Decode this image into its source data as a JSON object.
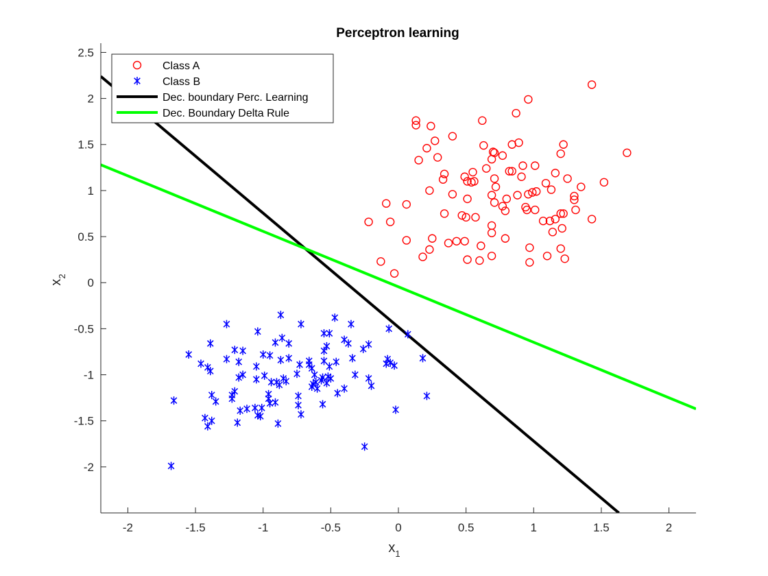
{
  "chart_data": {
    "type": "scatter",
    "title": "Perceptron learning",
    "xlabel": {
      "main": "x",
      "sub": "1"
    },
    "ylabel": {
      "main": "x",
      "sub": "2"
    },
    "xlim": [
      -2.2,
      2.2
    ],
    "ylim": [
      -2.5,
      2.6
    ],
    "xticks": [
      -2,
      -1.5,
      -1,
      -0.5,
      0,
      0.5,
      1,
      1.5,
      2
    ],
    "xtick_labels": [
      "-2",
      "-1.5",
      "-1",
      "-0.5",
      "0",
      "0.5",
      "1",
      "1.5",
      "2"
    ],
    "yticks": [
      -2,
      -1.5,
      -1,
      -0.5,
      0,
      0.5,
      1,
      1.5,
      2,
      2.5
    ],
    "ytick_labels": [
      "-2",
      "-1.5",
      "-1",
      "-0.5",
      "0",
      "0.5",
      "1",
      "1.5",
      "2",
      "2.5"
    ],
    "grid": false,
    "legend_position": "top-left",
    "colors": {
      "class_a": "#ff0000",
      "class_b": "#0000ff",
      "perceptron": "#000000",
      "delta": "#00ff00"
    },
    "series": [
      {
        "name": "Class A",
        "marker": "circle",
        "points": [
          [
            1.43,
            2.15
          ],
          [
            0.96,
            1.99
          ],
          [
            0.87,
            1.84
          ],
          [
            0.62,
            1.76
          ],
          [
            0.13,
            1.76
          ],
          [
            0.13,
            1.71
          ],
          [
            0.24,
            1.7
          ],
          [
            1.69,
            1.41
          ],
          [
            0.4,
            1.59
          ],
          [
            0.27,
            1.54
          ],
          [
            0.89,
            1.52
          ],
          [
            1.22,
            1.5
          ],
          [
            0.84,
            1.5
          ],
          [
            0.63,
            1.49
          ],
          [
            0.21,
            1.46
          ],
          [
            0.7,
            1.42
          ],
          [
            0.71,
            1.41
          ],
          [
            1.2,
            1.4
          ],
          [
            0.77,
            1.38
          ],
          [
            0.29,
            1.36
          ],
          [
            0.15,
            1.33
          ],
          [
            0.69,
            1.34
          ],
          [
            1.01,
            1.27
          ],
          [
            0.92,
            1.27
          ],
          [
            0.65,
            1.24
          ],
          [
            0.82,
            1.21
          ],
          [
            0.84,
            1.21
          ],
          [
            0.55,
            1.2
          ],
          [
            1.16,
            1.19
          ],
          [
            0.34,
            1.18
          ],
          [
            0.49,
            1.15
          ],
          [
            0.91,
            1.15
          ],
          [
            0.71,
            1.13
          ],
          [
            0.33,
            1.12
          ],
          [
            1.25,
            1.13
          ],
          [
            0.51,
            1.1
          ],
          [
            0.54,
            1.09
          ],
          [
            0.56,
            1.1
          ],
          [
            1.09,
            1.08
          ],
          [
            1.52,
            1.09
          ],
          [
            0.72,
            1.04
          ],
          [
            1.35,
            1.04
          ],
          [
            1.13,
            1.01
          ],
          [
            0.23,
            1.0
          ],
          [
            0.99,
            0.98
          ],
          [
            1.02,
            0.99
          ],
          [
            0.96,
            0.96
          ],
          [
            0.88,
            0.95
          ],
          [
            0.4,
            0.96
          ],
          [
            0.69,
            0.95
          ],
          [
            1.3,
            0.94
          ],
          [
            1.3,
            0.9
          ],
          [
            0.51,
            0.91
          ],
          [
            0.8,
            0.91
          ],
          [
            0.71,
            0.87
          ],
          [
            -0.09,
            0.86
          ],
          [
            0.06,
            0.85
          ],
          [
            0.77,
            0.83
          ],
          [
            0.94,
            0.82
          ],
          [
            0.95,
            0.79
          ],
          [
            1.01,
            0.79
          ],
          [
            0.79,
            0.78
          ],
          [
            1.31,
            0.79
          ],
          [
            1.22,
            0.75
          ],
          [
            1.2,
            0.75
          ],
          [
            0.34,
            0.75
          ],
          [
            0.47,
            0.73
          ],
          [
            0.5,
            0.71
          ],
          [
            0.57,
            0.71
          ],
          [
            1.43,
            0.69
          ],
          [
            1.16,
            0.69
          ],
          [
            1.07,
            0.67
          ],
          [
            1.12,
            0.67
          ],
          [
            0.69,
            0.62
          ],
          [
            -0.22,
            0.66
          ],
          [
            -0.06,
            0.66
          ],
          [
            1.21,
            0.59
          ],
          [
            1.14,
            0.55
          ],
          [
            0.69,
            0.54
          ],
          [
            0.25,
            0.48
          ],
          [
            0.79,
            0.48
          ],
          [
            0.06,
            0.46
          ],
          [
            0.49,
            0.45
          ],
          [
            0.43,
            0.45
          ],
          [
            0.37,
            0.43
          ],
          [
            0.61,
            0.4
          ],
          [
            0.97,
            0.38
          ],
          [
            1.2,
            0.37
          ],
          [
            0.23,
            0.36
          ],
          [
            0.69,
            0.29
          ],
          [
            0.18,
            0.28
          ],
          [
            1.1,
            0.29
          ],
          [
            1.23,
            0.26
          ],
          [
            0.51,
            0.25
          ],
          [
            0.6,
            0.24
          ],
          [
            -0.13,
            0.23
          ],
          [
            0.97,
            0.22
          ],
          [
            -0.03,
            0.1
          ]
        ]
      },
      {
        "name": "Class B",
        "marker": "asterisk",
        "points": [
          [
            -0.87,
            -0.35
          ],
          [
            -0.47,
            -0.38
          ],
          [
            -1.27,
            -0.45
          ],
          [
            -0.72,
            -0.45
          ],
          [
            -0.35,
            -0.45
          ],
          [
            -0.07,
            -0.5
          ],
          [
            -0.55,
            -0.55
          ],
          [
            -0.51,
            -0.55
          ],
          [
            -1.04,
            -0.53
          ],
          [
            0.07,
            -0.56
          ],
          [
            -0.86,
            -0.6
          ],
          [
            -0.4,
            -0.62
          ],
          [
            -0.91,
            -0.65
          ],
          [
            -1.39,
            -0.66
          ],
          [
            -0.37,
            -0.66
          ],
          [
            -0.22,
            -0.67
          ],
          [
            -0.81,
            -0.66
          ],
          [
            -0.53,
            -0.69
          ],
          [
            -0.26,
            -0.72
          ],
          [
            -1.21,
            -0.73
          ],
          [
            -1.15,
            -0.74
          ],
          [
            -0.55,
            -0.74
          ],
          [
            -1.55,
            -0.78
          ],
          [
            -0.95,
            -0.79
          ],
          [
            -1.0,
            -0.78
          ],
          [
            -0.34,
            -0.82
          ],
          [
            0.18,
            -0.82
          ],
          [
            -0.81,
            -0.82
          ],
          [
            -0.87,
            -0.84
          ],
          [
            -1.27,
            -0.83
          ],
          [
            -0.66,
            -0.85
          ],
          [
            -0.08,
            -0.83
          ],
          [
            -0.55,
            -0.85
          ],
          [
            -0.06,
            -0.87
          ],
          [
            -1.18,
            -0.86
          ],
          [
            -0.46,
            -0.86
          ],
          [
            -1.46,
            -0.88
          ],
          [
            -0.73,
            -0.89
          ],
          [
            -0.09,
            -0.88
          ],
          [
            -0.66,
            -0.89
          ],
          [
            -0.03,
            -0.9
          ],
          [
            -1.41,
            -0.92
          ],
          [
            -1.05,
            -0.91
          ],
          [
            -0.64,
            -0.93
          ],
          [
            -0.51,
            -0.91
          ],
          [
            -1.39,
            -0.96
          ],
          [
            -0.75,
            -0.99
          ],
          [
            -0.62,
            -1.0
          ],
          [
            -0.99,
            -1.01
          ],
          [
            -0.32,
            -1.0
          ],
          [
            -1.15,
            -1.0
          ],
          [
            -0.52,
            -1.02
          ],
          [
            -1.18,
            -1.03
          ],
          [
            -0.56,
            -1.03
          ],
          [
            -0.5,
            -1.04
          ],
          [
            -1.05,
            -1.05
          ],
          [
            -0.85,
            -1.04
          ],
          [
            -0.83,
            -1.07
          ],
          [
            -0.22,
            -1.04
          ],
          [
            -0.57,
            -1.06
          ],
          [
            -0.94,
            -1.08
          ],
          [
            -0.61,
            -1.08
          ],
          [
            -0.9,
            -1.08
          ],
          [
            -0.53,
            -1.09
          ],
          [
            -0.63,
            -1.1
          ],
          [
            -0.88,
            -1.11
          ],
          [
            -0.2,
            -1.12
          ],
          [
            -0.64,
            -1.13
          ],
          [
            -0.6,
            -1.15
          ],
          [
            -0.4,
            -1.15
          ],
          [
            -1.21,
            -1.18
          ],
          [
            -0.45,
            -1.2
          ],
          [
            -1.23,
            -1.22
          ],
          [
            -1.38,
            -1.22
          ],
          [
            -0.96,
            -1.21
          ],
          [
            -0.74,
            -1.23
          ],
          [
            0.21,
            -1.23
          ],
          [
            -1.23,
            -1.26
          ],
          [
            -0.96,
            -1.26
          ],
          [
            -1.35,
            -1.29
          ],
          [
            -1.66,
            -1.28
          ],
          [
            -0.91,
            -1.3
          ],
          [
            -0.74,
            -1.33
          ],
          [
            -0.56,
            -1.32
          ],
          [
            -0.95,
            -1.31
          ],
          [
            -1.17,
            -1.39
          ],
          [
            -1.06,
            -1.36
          ],
          [
            -1.01,
            -1.36
          ],
          [
            -1.12,
            -1.37
          ],
          [
            -0.02,
            -1.38
          ],
          [
            -1.04,
            -1.44
          ],
          [
            -0.72,
            -1.43
          ],
          [
            -1.02,
            -1.45
          ],
          [
            -1.43,
            -1.47
          ],
          [
            -1.38,
            -1.5
          ],
          [
            -1.19,
            -1.52
          ],
          [
            -0.89,
            -1.53
          ],
          [
            -1.41,
            -1.56
          ],
          [
            -0.25,
            -1.78
          ],
          [
            -1.68,
            -1.99
          ]
        ]
      },
      {
        "name": "Dec. boundary Perc. Learning",
        "type": "line",
        "points": [
          [
            -2.2,
            2.24
          ],
          [
            1.63,
            -2.5
          ]
        ]
      },
      {
        "name": "Dec. Boundary Delta Rule",
        "type": "line",
        "points": [
          [
            -2.2,
            1.28
          ],
          [
            2.2,
            -1.37
          ]
        ]
      }
    ]
  }
}
